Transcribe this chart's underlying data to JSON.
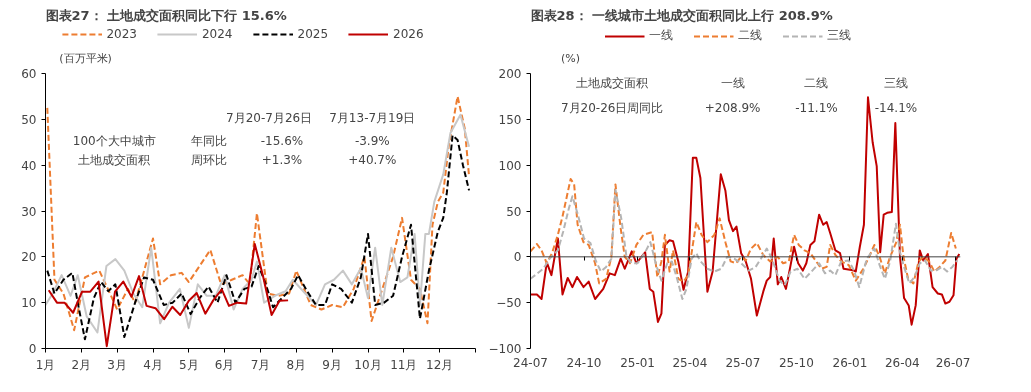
{
  "chart_data": [
    {
      "type": "line",
      "title": "图表27：  土地成交面积同比下行 15.6%",
      "ylabel": "(百万平米)",
      "xlim": [
        1,
        13
      ],
      "xticks": [
        {
          "value": 1,
          "label": "1月"
        },
        {
          "value": 2,
          "label": "2月"
        },
        {
          "value": 3,
          "label": "3月"
        },
        {
          "value": 4,
          "label": "4月"
        },
        {
          "value": 5,
          "label": "5月"
        },
        {
          "value": 6,
          "label": "6月"
        },
        {
          "value": 7,
          "label": "7月"
        },
        {
          "value": 8,
          "label": "8月"
        },
        {
          "value": 9,
          "label": "9月"
        },
        {
          "value": 10,
          "label": "10月"
        },
        {
          "value": 11,
          "label": "11月"
        },
        {
          "value": 12,
          "label": "12月"
        },
        {
          "value": 13,
          "label": null
        }
      ],
      "ylim": [
        0,
        60
      ],
      "yticks": [
        0,
        10,
        20,
        30,
        40,
        50,
        60
      ],
      "grid": false,
      "legend": "top",
      "annotations": [
        "7月20-7月26日",
        "7月13-7月19日",
        "100个大中城市",
        "土地成交面积",
        "年同比",
        "-15.6%",
        "-3.9%",
        "周环比",
        "+1.3%",
        "+40.7%"
      ],
      "series": [
        {
          "name": "2023",
          "color": "#ed7d31",
          "line_style": "dashed",
          "x": [
            1.05,
            1.25,
            1.5,
            1.8,
            2.1,
            2.5,
            2.8,
            3.0,
            3.3,
            3.5,
            3.7,
            4.0,
            4.2,
            4.5,
            4.8,
            5.0,
            5.3,
            5.6,
            5.9,
            6.2,
            6.5,
            6.7,
            6.9,
            7.2,
            7.5,
            7.8,
            8.0,
            8.4,
            8.7,
            9.0,
            9.3,
            9.6,
            9.9,
            10.1,
            10.4,
            10.7,
            10.95,
            11.2,
            11.45,
            11.66,
            11.8,
            11.95,
            12.1,
            12.25,
            12.5,
            12.7,
            12.82
          ],
          "values": [
            52.5,
            15,
            12,
            4,
            15.5,
            17,
            12,
            8.5,
            13,
            10,
            15.5,
            24,
            14,
            16,
            16.5,
            14.5,
            18,
            21.5,
            14,
            15,
            16,
            14,
            29.5,
            12,
            11.5,
            12,
            17,
            9.5,
            8.5,
            9.5,
            9,
            13,
            20,
            6,
            13,
            20,
            28.5,
            15,
            13,
            5.5,
            27,
            32,
            34,
            44,
            55,
            48,
            37.6
          ]
        },
        {
          "name": "2024",
          "color": "#c8c8c8",
          "line_style": "solid",
          "x": [
            1.0,
            1.2,
            1.45,
            1.7,
            1.9,
            2.15,
            2.45,
            2.7,
            2.95,
            3.2,
            3.45,
            3.7,
            3.95,
            4.2,
            4.45,
            4.75,
            5.0,
            5.25,
            5.5,
            5.75,
            6.0,
            6.25,
            6.5,
            6.75,
            6.9,
            7.1,
            7.4,
            7.7,
            7.9,
            8.25,
            8.55,
            8.8,
            9.05,
            9.3,
            9.55,
            9.8,
            10.0,
            10.2,
            10.4,
            10.65,
            10.9,
            11.1,
            11.3,
            11.45,
            11.6,
            11.7,
            11.85,
            12.1,
            12.3,
            12.58,
            12.82
          ],
          "values": [
            9.5,
            12,
            16,
            11.5,
            16,
            7,
            3.5,
            18,
            19.5,
            17,
            12,
            9,
            22,
            5.5,
            10,
            13,
            4.5,
            14,
            11.5,
            11.5,
            16,
            8.5,
            13,
            15,
            19,
            10,
            11.5,
            12.5,
            15,
            12,
            9.5,
            14,
            15,
            17,
            14,
            17.5,
            11,
            22,
            9.5,
            22,
            14.5,
            15.5,
            25,
            9.5,
            25,
            25,
            32,
            38,
            47,
            51,
            44
          ]
        },
        {
          "name": "2025",
          "color": "#000000",
          "line_style": "dashed",
          "x": [
            1.05,
            1.25,
            1.5,
            1.75,
            1.9,
            2.1,
            2.35,
            2.55,
            2.75,
            2.95,
            3.2,
            3.5,
            3.75,
            4.0,
            4.3,
            4.55,
            4.8,
            5.05,
            5.3,
            5.55,
            5.8,
            6.05,
            6.3,
            6.55,
            6.75,
            6.95,
            7.15,
            7.35,
            7.6,
            7.85,
            8.05,
            8.3,
            8.55,
            8.8,
            9.0,
            9.25,
            9.55,
            9.8,
            10.0,
            10.2,
            10.45,
            10.7,
            10.95,
            11.2,
            11.45,
            11.7,
            11.95,
            12.1,
            12.2,
            12.36,
            12.5,
            12.65,
            12.82
          ],
          "values": [
            17,
            12,
            15,
            16.5,
            10,
            2,
            11,
            14.5,
            12.5,
            14,
            2.5,
            10,
            15.5,
            15,
            9.5,
            10,
            12,
            7.5,
            11,
            13.5,
            10,
            16,
            10,
            13,
            13.5,
            18,
            14,
            9,
            11,
            13,
            16,
            12.5,
            9.5,
            9.5,
            14,
            13,
            10,
            15.5,
            25,
            9.5,
            10,
            11.5,
            20,
            27,
            6.5,
            17,
            25.5,
            28.5,
            34,
            46.5,
            45.5,
            40,
            34.5
          ]
        },
        {
          "name": "2026",
          "color": "#c00000",
          "line_style": "solid",
          "x": [
            1.09,
            1.32,
            1.53,
            1.77,
            2.02,
            2.25,
            2.48,
            2.71,
            2.94,
            3.17,
            3.4,
            3.61,
            3.82,
            4.07,
            4.31,
            4.54,
            4.76,
            5.0,
            5.22,
            5.46,
            5.68,
            5.92,
            6.12,
            6.35,
            6.6,
            6.84,
            7.07,
            7.31,
            7.53,
            7.77
          ],
          "values": [
            12.7,
            10,
            10,
            7.8,
            12.4,
            12.4,
            14.6,
            0.5,
            12.4,
            14.6,
            11.3,
            15.8,
            9.3,
            8.8,
            6.4,
            9.1,
            7.3,
            10.4,
            12.1,
            7.6,
            10.5,
            12.9,
            9.3,
            10,
            9.8,
            22.8,
            15.8,
            7.3,
            10.4,
            10.5
          ]
        }
      ]
    },
    {
      "type": "line",
      "title": "图表28：  一线城市土地成交面积同比上行 208.9%",
      "ylabel": "(%)",
      "xlim": [
        "2024-07-01",
        "2026-07-10"
      ],
      "xticks": [
        {
          "value": "2024-07",
          "label": "24-07"
        },
        {
          "value": "2024-10",
          "label": "24-10"
        },
        {
          "value": "2025-01",
          "label": "25-01"
        },
        {
          "value": "2025-04",
          "label": "25-04"
        },
        {
          "value": "2025-07",
          "label": "25-07"
        },
        {
          "value": "2025-10",
          "label": "25-10"
        },
        {
          "value": "2026-01",
          "label": "26-01"
        },
        {
          "value": "2026-04",
          "label": "26-04"
        },
        {
          "value": "2026-07",
          "label": "26-07"
        }
      ],
      "ylim": [
        -100,
        200
      ],
      "yticks": [
        -100,
        -50,
        0,
        50,
        100,
        150,
        200
      ],
      "grid": false,
      "legend": "top",
      "ref_lines": [
        {
          "axis": "y",
          "value": 0,
          "color": "#404040"
        }
      ],
      "annotations": [
        "土地成交面积",
        "一线",
        "二线",
        "三线",
        "7月20-26日周同比",
        "+208.9%",
        "-11.1%",
        "-14.1%"
      ],
      "series": [
        {
          "name": "一线",
          "color": "#c00000",
          "line_style": "solid",
          "x": [
            "2024-07-01",
            "2024-07-12",
            "2024-07-20",
            "2024-07-29",
            "2024-08-06",
            "2024-08-17",
            "2024-08-25",
            "2024-09-03",
            "2024-09-11",
            "2024-09-19",
            "2024-09-30",
            "2024-10-09",
            "2024-10-20",
            "2024-11-03",
            "2024-11-14",
            "2024-11-23",
            "2024-12-03",
            "2024-12-10",
            "2024-12-22",
            "2024-12-30",
            "2025-01-14",
            "2025-01-22",
            "2025-01-28",
            "2025-02-05",
            "2025-02-11",
            "2025-02-17",
            "2025-02-25",
            "2025-03-03",
            "2025-03-12",
            "2025-03-21",
            "2025-03-29",
            "2025-04-06",
            "2025-04-12",
            "2025-04-19",
            "2025-05-01",
            "2025-05-10",
            "2025-05-24",
            "2025-06-01",
            "2025-06-07",
            "2025-06-14",
            "2025-06-20",
            "2025-06-28",
            "2025-07-06",
            "2025-07-15",
            "2025-07-25",
            "2025-08-05",
            "2025-08-11",
            "2025-08-17",
            "2025-08-23",
            "2025-08-30",
            "2025-09-05",
            "2025-09-13",
            "2025-09-21",
            "2025-09-27",
            "2025-10-04",
            "2025-10-12",
            "2025-10-18",
            "2025-10-25",
            "2025-11-01",
            "2025-11-09",
            "2025-11-16",
            "2025-11-22",
            "2025-11-28",
            "2025-12-07",
            "2025-12-15",
            "2025-12-21",
            "2026-01-01",
            "2026-01-08",
            "2026-01-11",
            "2026-01-18",
            "2026-01-25",
            "2026-02-01",
            "2026-02-09",
            "2026-02-16",
            "2026-02-22",
            "2026-02-28",
            "2026-03-06",
            "2026-03-14",
            "2026-03-20",
            "2026-03-28",
            "2026-04-04",
            "2026-04-12",
            "2026-04-17",
            "2026-04-24",
            "2026-05-01",
            "2026-05-07",
            "2026-05-15",
            "2026-05-23",
            "2026-06-01",
            "2026-06-08",
            "2026-06-14",
            "2026-06-21",
            "2026-06-28",
            "2026-07-03",
            "2026-07-08"
          ],
          "values": [
            -41,
            -41,
            -46,
            -6,
            -20,
            20,
            -41,
            -23,
            -33,
            -22,
            -33,
            -27,
            -46,
            -35,
            -18,
            -20,
            -2,
            -13,
            6,
            -7,
            5,
            -35,
            -38,
            -71,
            -62,
            13,
            18,
            17,
            -5,
            -36,
            -16,
            108,
            108,
            86,
            -38,
            -16,
            90,
            72,
            40,
            28,
            33,
            4,
            -5,
            -24,
            -64,
            -38,
            -26,
            -22,
            20,
            -30,
            -22,
            -35,
            -9,
            11,
            -7,
            -15,
            -7,
            13,
            17,
            46,
            35,
            38,
            26,
            7,
            4,
            -13,
            -14,
            -15,
            -16,
            11,
            35,
            174,
            125,
            99,
            5,
            46,
            48,
            49,
            146,
            0,
            -45,
            -53,
            -74,
            -53,
            7,
            -4,
            3,
            -33,
            -40,
            -41,
            -51,
            -49,
            -42,
            -2,
            3
          ]
        },
        {
          "name": "二线",
          "color": "#ed7d31",
          "line_style": "dashed",
          "x": [
            "2024-07-01",
            "2024-07-12",
            "2024-07-20",
            "2024-07-29",
            "2024-08-07",
            "2024-08-17",
            "2024-08-25",
            "2024-09-08",
            "2024-09-14",
            "2024-09-20",
            "2024-09-30",
            "2024-10-09",
            "2024-10-20",
            "2024-10-27",
            "2024-11-08",
            "2024-11-17",
            "2024-11-24",
            "2024-12-03",
            "2024-12-10",
            "2024-12-19",
            "2024-12-30",
            "2025-01-11",
            "2025-01-26",
            "2025-02-04",
            "2025-02-11",
            "2025-02-17",
            "2025-02-25",
            "2025-03-03",
            "2025-03-12",
            "2025-03-21",
            "2025-03-29",
            "2025-04-12",
            "2025-04-21",
            "2025-05-01",
            "2025-05-13",
            "2025-05-22",
            "2025-06-01",
            "2025-06-10",
            "2025-06-19",
            "2025-06-28",
            "2025-07-06",
            "2025-07-15",
            "2025-07-25",
            "2025-08-05",
            "2025-08-17",
            "2025-08-30",
            "2025-09-08",
            "2025-09-18",
            "2025-09-27",
            "2025-10-05",
            "2025-10-15",
            "2025-10-25",
            "2025-11-04",
            "2025-11-13",
            "2025-11-22",
            "2025-11-28",
            "2025-12-07",
            "2025-12-17",
            "2025-12-30",
            "2026-01-11",
            "2026-01-24",
            "2026-02-03",
            "2026-02-12",
            "2026-02-21",
            "2026-03-02",
            "2026-03-11",
            "2026-03-21",
            "2026-03-28",
            "2026-04-03",
            "2026-04-11",
            "2026-04-20",
            "2026-04-29",
            "2026-05-07",
            "2026-05-17",
            "2026-05-26",
            "2026-06-04",
            "2026-06-14",
            "2026-06-24",
            "2026-07-02"
          ],
          "values": [
            6,
            14,
            7,
            -7,
            4,
            24,
            44,
            85,
            79,
            35,
            16,
            13,
            -7,
            -29,
            -24,
            0,
            79,
            31,
            0,
            -7,
            13,
            24,
            27,
            -22,
            -5,
            24,
            -16,
            7,
            -24,
            -27,
            -20,
            38,
            24,
            16,
            24,
            42,
            16,
            -5,
            -7,
            0,
            -4,
            9,
            15,
            2,
            -5,
            0,
            -7,
            -5,
            24,
            13,
            7,
            4,
            -5,
            -13,
            -11,
            13,
            2,
            -5,
            -9,
            -26,
            -13,
            0,
            13,
            0,
            -18,
            0,
            15,
            35,
            0,
            -24,
            -29,
            -5,
            0,
            -5,
            -16,
            -11,
            -4,
            26,
            9
          ]
        },
        {
          "name": "三线",
          "color": "#b4b4b4",
          "line_style": "dashed",
          "x": [
            "2024-07-01",
            "2024-07-13",
            "2024-07-23",
            "2024-08-03",
            "2024-08-17",
            "2024-08-26",
            "2024-09-05",
            "2024-09-11",
            "2024-09-20",
            "2024-10-01",
            "2024-10-12",
            "2024-10-21",
            "2024-10-30",
            "2024-11-08",
            "2024-11-17",
            "2024-11-24",
            "2024-12-04",
            "2024-12-13",
            "2024-12-22",
            "2025-01-01",
            "2025-01-14",
            "2025-01-23",
            "2025-02-02",
            "2025-02-11",
            "2025-02-21",
            "2025-03-01",
            "2025-03-10",
            "2025-03-19",
            "2025-03-26",
            "2025-04-04",
            "2025-04-12",
            "2025-04-18",
            "2025-05-01",
            "2025-05-13",
            "2025-05-25",
            "2025-06-04",
            "2025-06-16",
            "2025-06-28",
            "2025-07-11",
            "2025-07-23",
            "2025-08-01",
            "2025-08-11",
            "2025-08-20",
            "2025-09-02",
            "2025-09-11",
            "2025-09-21",
            "2025-10-03",
            "2025-10-15",
            "2025-10-27",
            "2025-11-09",
            "2025-11-19",
            "2025-11-28",
            "2025-12-07",
            "2025-12-17",
            "2025-12-30",
            "2026-01-08",
            "2026-01-17",
            "2026-01-30",
            "2026-02-12",
            "2026-02-21",
            "2026-03-02",
            "2026-03-11",
            "2026-03-21",
            "2026-03-28",
            "2026-04-04",
            "2026-04-13",
            "2026-04-22",
            "2026-05-01",
            "2026-05-10",
            "2026-05-20",
            "2026-05-29",
            "2026-06-08",
            "2026-06-17",
            "2026-06-26",
            "2026-07-04"
          ],
          "values": [
            -24,
            -18,
            -13,
            -2,
            7,
            27,
            53,
            66,
            47,
            20,
            15,
            -4,
            -16,
            -11,
            -2,
            73,
            42,
            0,
            -7,
            -7,
            5,
            16,
            -9,
            -26,
            -7,
            -5,
            -24,
            -46,
            -35,
            -2,
            4,
            -4,
            -13,
            -16,
            -13,
            0,
            -2,
            -7,
            -15,
            -11,
            -2,
            9,
            -2,
            -26,
            -31,
            -16,
            -13,
            -24,
            -16,
            -7,
            -18,
            -15,
            -20,
            -5,
            -4,
            -15,
            -33,
            -2,
            9,
            -9,
            -24,
            -5,
            36,
            5,
            -11,
            -29,
            -22,
            -7,
            -4,
            -15,
            -15,
            -11,
            -16,
            -11,
            -4
          ]
        }
      ]
    }
  ]
}
